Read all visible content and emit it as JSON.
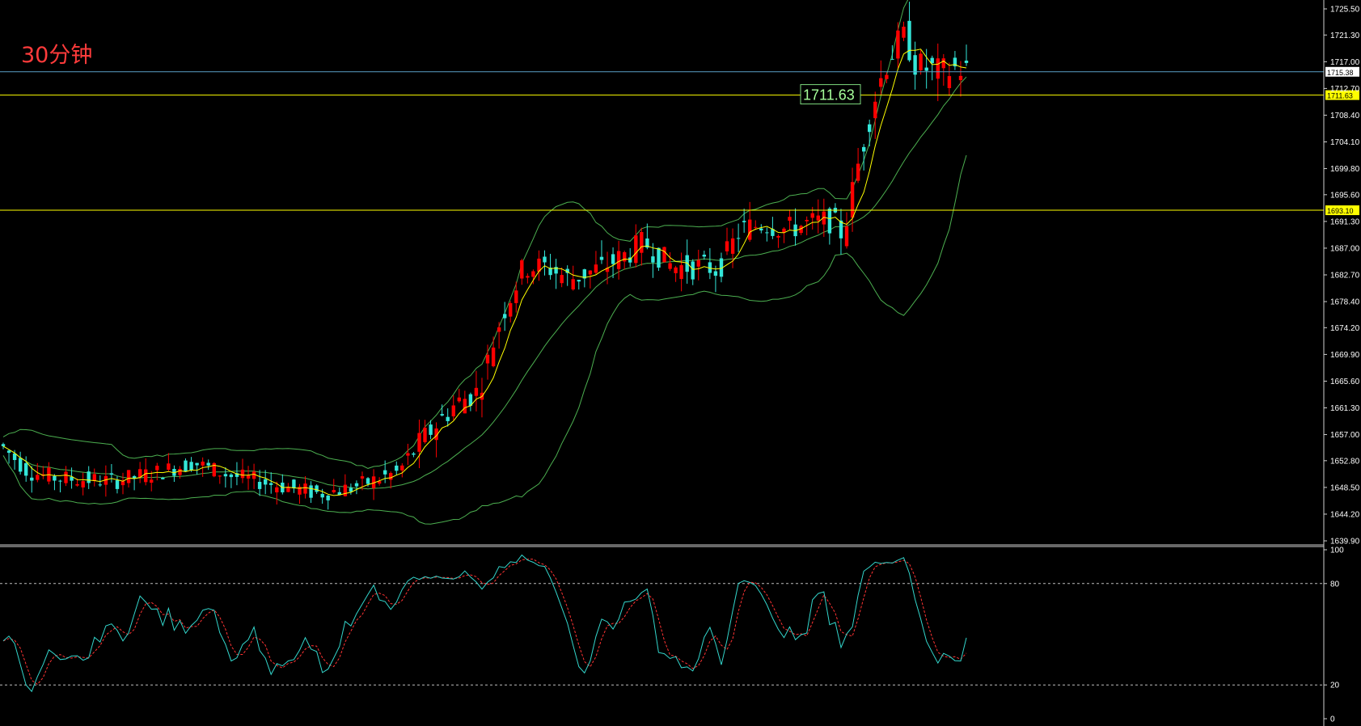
{
  "title": "30分钟",
  "chart_data": [
    {
      "type": "candlestick",
      "timeframe": "30分钟",
      "y_ticks": [
        "1725.50",
        "1721.30",
        "1717.00",
        "1712.70",
        "1708.40",
        "1704.10",
        "1699.80",
        "1695.60",
        "1691.30",
        "1687.00",
        "1682.70",
        "1678.40",
        "1674.20",
        "1669.90",
        "1665.60",
        "1661.30",
        "1657.00",
        "1652.80",
        "1648.50",
        "1644.20",
        "1639.90"
      ],
      "ylim": [
        1639.9,
        1725.5
      ],
      "price_lines": [
        {
          "value": 1715.38,
          "label": "1715.38",
          "color": "#5aa0c8"
        },
        {
          "value": 1711.63,
          "label": "1711.63",
          "color": "#ffff00",
          "annotation": "1711.63"
        },
        {
          "value": 1693.1,
          "label": "1693.10",
          "color": "#ffff00"
        }
      ],
      "up_color": "#ff0000",
      "down_color": "#33e6d9",
      "ma_color": "#ffff00",
      "band_color": "#4caf50",
      "ma_period": 5,
      "band_period": 20,
      "band_k": 2
    },
    {
      "type": "line",
      "indicator": "stochastic",
      "y_ticks": [
        "100",
        "80",
        "20",
        "0"
      ],
      "ylim": [
        0,
        100
      ],
      "levels": [
        80,
        20
      ],
      "series": [
        {
          "line": "K",
          "color": "#33d6cc"
        },
        {
          "line": "D",
          "color": "#ff3333",
          "dashed": true
        }
      ],
      "k_period": 9,
      "smooth": 3
    }
  ]
}
